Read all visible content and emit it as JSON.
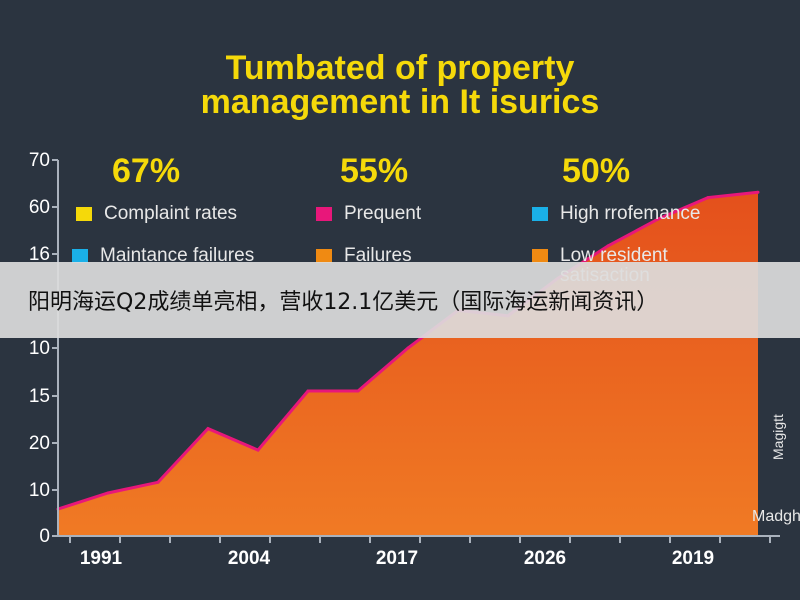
{
  "chart_data": {
    "type": "area",
    "title": "Tumbated of property management in It isurics",
    "x_tick_labels": [
      "1991",
      "2004",
      "2017",
      "2026",
      "2019"
    ],
    "y_tick_labels": [
      "70",
      "60",
      "16",
      "",
      "10",
      "15",
      "20",
      "10",
      "0"
    ],
    "series": [
      {
        "color": "#e8501c",
        "x_index": [
          0,
          1,
          2,
          3,
          4,
          5,
          6,
          7,
          8,
          9,
          10,
          11,
          12,
          13,
          14
        ],
        "values": [
          5,
          8,
          10,
          20,
          16,
          27,
          27,
          35,
          42,
          41,
          48,
          54,
          59,
          63,
          64
        ]
      }
    ],
    "ylim": [
      0,
      70
    ],
    "grid": false,
    "legend_placement": "top"
  },
  "header": {
    "title_line1": "Tumbated of property",
    "title_line2": "management in It isurics"
  },
  "stats": [
    "67%",
    "55%",
    "50%"
  ],
  "legend": [
    {
      "label": "Complaint rates",
      "color": "#f5d90a"
    },
    {
      "label": "Prequent",
      "color": "#e8177a"
    },
    {
      "label": "High rrofemance",
      "color": "#1ab0e8"
    },
    {
      "label": "Maintance failures",
      "color": "#1ab0e8"
    },
    {
      "label": "Failures",
      "color": "#f08a12"
    },
    {
      "label": "Low resident satisaction",
      "color": "#f08a12"
    }
  ],
  "banner": {
    "text": "阳明海运Q2成绩单亮相，营收12.1亿美元（国际海运新闻资讯）"
  },
  "watermark": {
    "side": "Magigtt",
    "bottom": "Madgh"
  }
}
